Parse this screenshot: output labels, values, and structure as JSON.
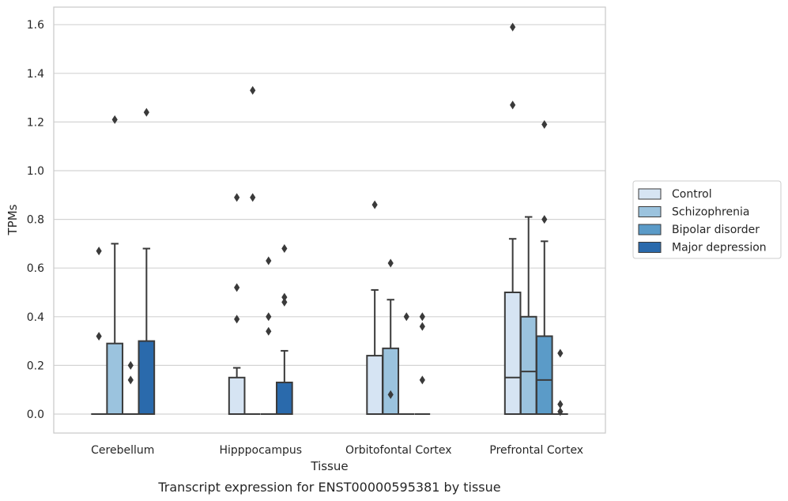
{
  "chart_data": {
    "type": "box",
    "title": "",
    "caption": "Transcript expression for ENST00000595381 by tissue",
    "xlabel": "Tissue",
    "ylabel": "TPMs",
    "ylim": [
      -0.08,
      1.67
    ],
    "yticks": [
      0.0,
      0.2,
      0.4,
      0.6,
      0.8,
      1.0,
      1.2,
      1.4,
      1.6
    ],
    "ytick_labels": [
      "0.0",
      "0.2",
      "0.4",
      "0.6",
      "0.8",
      "1.0",
      "1.2",
      "1.4",
      "1.6"
    ],
    "grid": "horizontal",
    "legend_position": "right",
    "categories": [
      "Cerebellum",
      "Hipppocampus",
      "Orbitofontal Cortex",
      "Prefrontal Cortex"
    ],
    "series": [
      {
        "name": "Control",
        "color": "#d6e4f3",
        "boxes": [
          {
            "q1": 0,
            "median": 0,
            "q3": 0,
            "whisker_low": 0,
            "whisker_high": 0,
            "outliers": [
              0.32,
              0.67
            ]
          },
          {
            "q1": 0,
            "median": 0,
            "q3": 0.15,
            "whisker_low": 0,
            "whisker_high": 0.19,
            "outliers": [
              0.39,
              0.52,
              0.89
            ]
          },
          {
            "q1": 0,
            "median": 0,
            "q3": 0.24,
            "whisker_low": 0,
            "whisker_high": 0.51,
            "outliers": [
              0.86
            ]
          },
          {
            "q1": 0,
            "median": 0.15,
            "q3": 0.5,
            "whisker_low": 0,
            "whisker_high": 0.72,
            "outliers": [
              1.27,
              1.59
            ]
          }
        ]
      },
      {
        "name": "Schizophrenia",
        "color": "#9bc3de",
        "boxes": [
          {
            "q1": 0,
            "median": 0,
            "q3": 0.29,
            "whisker_low": 0,
            "whisker_high": 0.7,
            "outliers": [
              1.21
            ]
          },
          {
            "q1": 0,
            "median": 0,
            "q3": 0,
            "whisker_low": 0,
            "whisker_high": 0,
            "outliers": [
              0.89,
              1.33
            ]
          },
          {
            "q1": 0,
            "median": 0,
            "q3": 0.27,
            "whisker_low": 0,
            "whisker_high": 0.47,
            "outliers": [
              0.08,
              0.62
            ]
          },
          {
            "q1": 0,
            "median": 0.175,
            "q3": 0.4,
            "whisker_low": 0,
            "whisker_high": 0.81,
            "outliers": []
          }
        ]
      },
      {
        "name": "Bipolar disorder",
        "color": "#5b9bc8",
        "boxes": [
          {
            "q1": 0,
            "median": 0,
            "q3": 0,
            "whisker_low": 0,
            "whisker_high": 0,
            "outliers": [
              0.14,
              0.2
            ]
          },
          {
            "q1": 0,
            "median": 0,
            "q3": 0,
            "whisker_low": 0,
            "whisker_high": 0,
            "outliers": [
              0.34,
              0.4,
              0.63
            ]
          },
          {
            "q1": 0,
            "median": 0,
            "q3": 0,
            "whisker_low": 0,
            "whisker_high": 0,
            "outliers": [
              0.4
            ]
          },
          {
            "q1": 0,
            "median": 0.14,
            "q3": 0.32,
            "whisker_low": 0,
            "whisker_high": 0.71,
            "outliers": [
              0.8,
              1.19
            ]
          }
        ]
      },
      {
        "name": "Major depression",
        "color": "#2a6aac",
        "boxes": [
          {
            "q1": 0,
            "median": 0,
            "q3": 0.3,
            "whisker_low": 0,
            "whisker_high": 0.68,
            "outliers": [
              1.24
            ]
          },
          {
            "q1": 0,
            "median": 0,
            "q3": 0.13,
            "whisker_low": 0,
            "whisker_high": 0.26,
            "outliers": [
              0.46,
              0.48,
              0.68
            ]
          },
          {
            "q1": 0,
            "median": 0,
            "q3": 0,
            "whisker_low": 0,
            "whisker_high": 0,
            "outliers": [
              0.14,
              0.36,
              0.4
            ]
          },
          {
            "q1": 0,
            "median": 0,
            "q3": 0,
            "whisker_low": 0,
            "whisker_high": 0,
            "outliers": [
              0.01,
              0.04,
              0.25
            ]
          }
        ]
      }
    ]
  }
}
